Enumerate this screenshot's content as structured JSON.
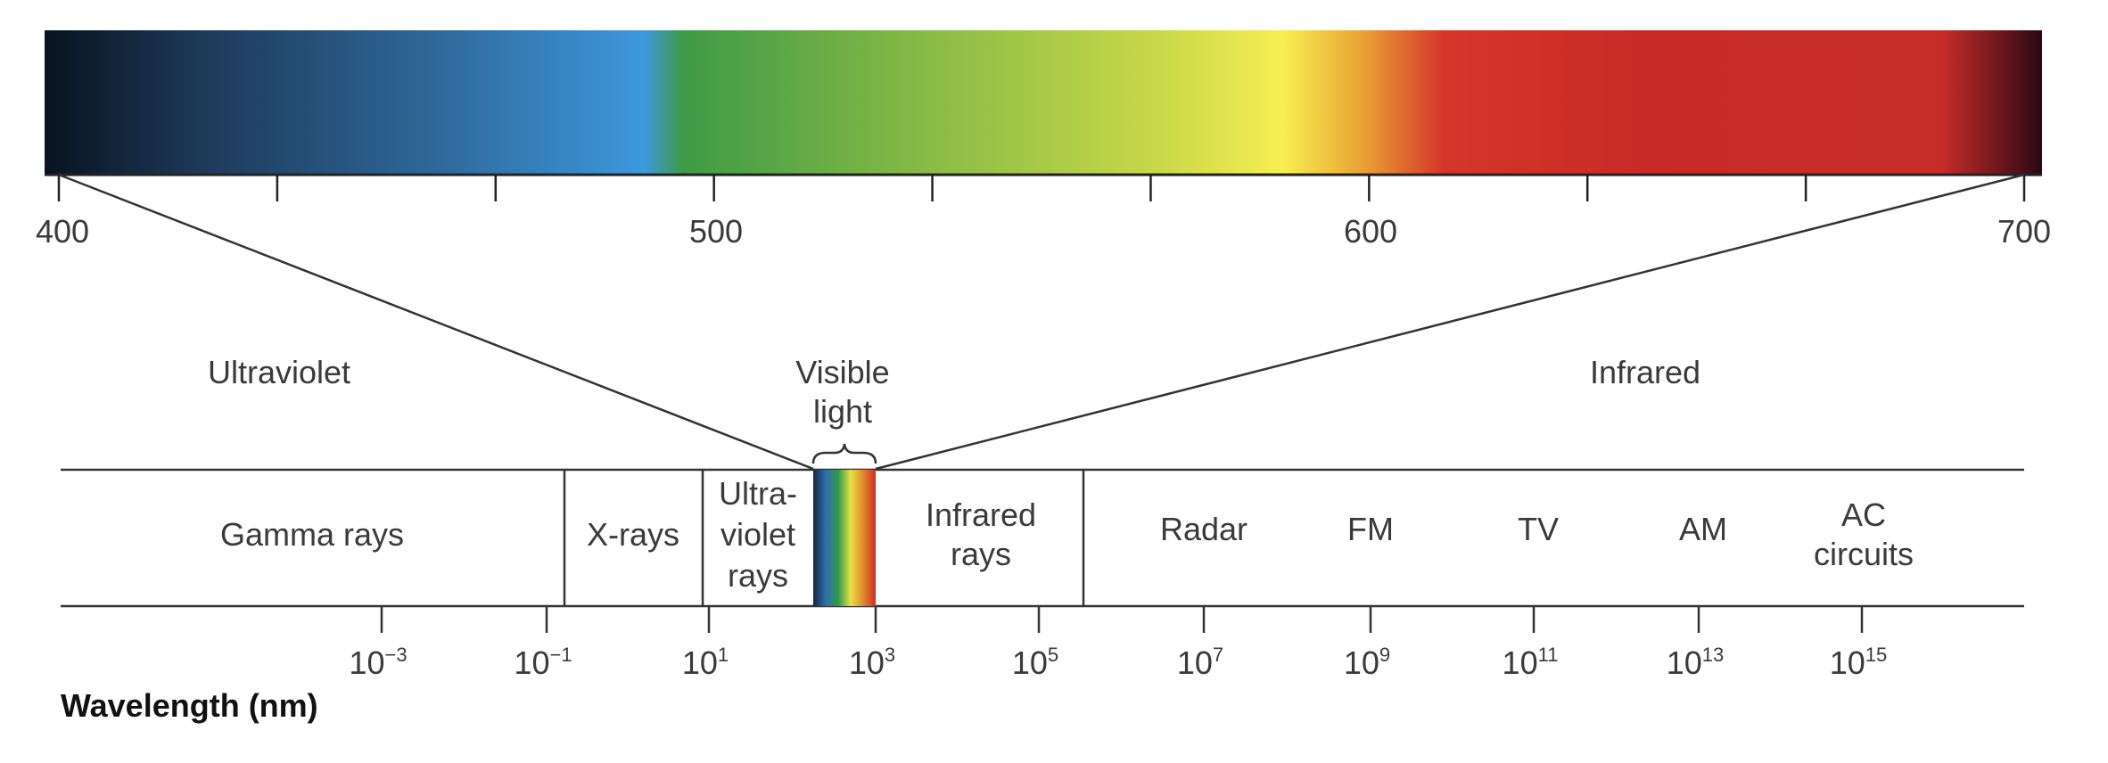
{
  "visible_spectrum": {
    "scale_labels": [
      "400",
      "500",
      "600",
      "700"
    ],
    "gradient_colors": [
      "#08131f",
      "#1e3a5a",
      "#2f6a9c",
      "#3d98dd",
      "#3f9a46",
      "#8dbd46",
      "#c9d948",
      "#f7ee52",
      "#e9a233",
      "#d5362a",
      "#c82b27",
      "#c62c28",
      "#2a0814"
    ]
  },
  "region_labels": {
    "ultraviolet": "Ultraviolet",
    "visible_line1": "Visible",
    "visible_line2": "light",
    "infrared": "Infrared"
  },
  "bands": [
    {
      "lines": [
        "Gamma rays"
      ]
    },
    {
      "lines": [
        "X-rays"
      ]
    },
    {
      "lines": [
        "Ultra-",
        "violet",
        "rays"
      ]
    },
    {
      "lines": [
        "Infrared",
        "rays"
      ]
    },
    {
      "lines": [
        "Radar"
      ]
    },
    {
      "lines": [
        "FM"
      ]
    },
    {
      "lines": [
        "TV"
      ]
    },
    {
      "lines": [
        "AM"
      ]
    },
    {
      "lines": [
        "AC",
        "circuits"
      ]
    }
  ],
  "wavelength_ticks": [
    {
      "base": "10",
      "exp": "−3"
    },
    {
      "base": "10",
      "exp": "−1"
    },
    {
      "base": "10",
      "exp": "1"
    },
    {
      "base": "10",
      "exp": "3"
    },
    {
      "base": "10",
      "exp": "5"
    },
    {
      "base": "10",
      "exp": "7"
    },
    {
      "base": "10",
      "exp": "9"
    },
    {
      "base": "10",
      "exp": "11"
    },
    {
      "base": "10",
      "exp": "13"
    },
    {
      "base": "10",
      "exp": "15"
    }
  ],
  "axis_title": "Wavelength (nm)",
  "colors": {
    "line": "#333333",
    "mini_spectrum": [
      "#14263d",
      "#2f6db0",
      "#2e9a4a",
      "#e6e046",
      "#e08a2a",
      "#d12b26"
    ]
  }
}
